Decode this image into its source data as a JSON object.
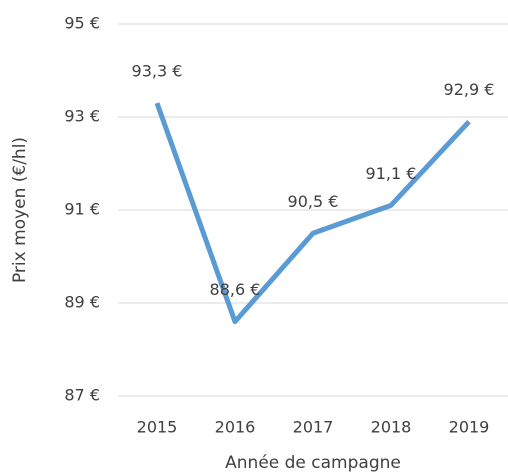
{
  "chart_data": {
    "type": "line",
    "x_label": "Année de campagne",
    "y_label": "Prix moyen (€/hl)",
    "categories": [
      "2015",
      "2016",
      "2017",
      "2018",
      "2019"
    ],
    "series": [
      {
        "name": "Prix moyen",
        "color": "#5b9bd5",
        "values": [
          93.3,
          88.6,
          90.5,
          91.1,
          92.9
        ],
        "value_labels": [
          "93,3 €",
          "88,6 €",
          "90,5 €",
          "91,1 €",
          "92,9 €"
        ]
      }
    ],
    "ylim": [
      87,
      95
    ],
    "yticks": [
      {
        "value": 87,
        "label": "87 €"
      },
      {
        "value": 89,
        "label": "89 €"
      },
      {
        "value": 91,
        "label": "91 €"
      },
      {
        "value": 93,
        "label": "93 €"
      },
      {
        "value": 95,
        "label": "95 €"
      }
    ],
    "grid": true
  }
}
